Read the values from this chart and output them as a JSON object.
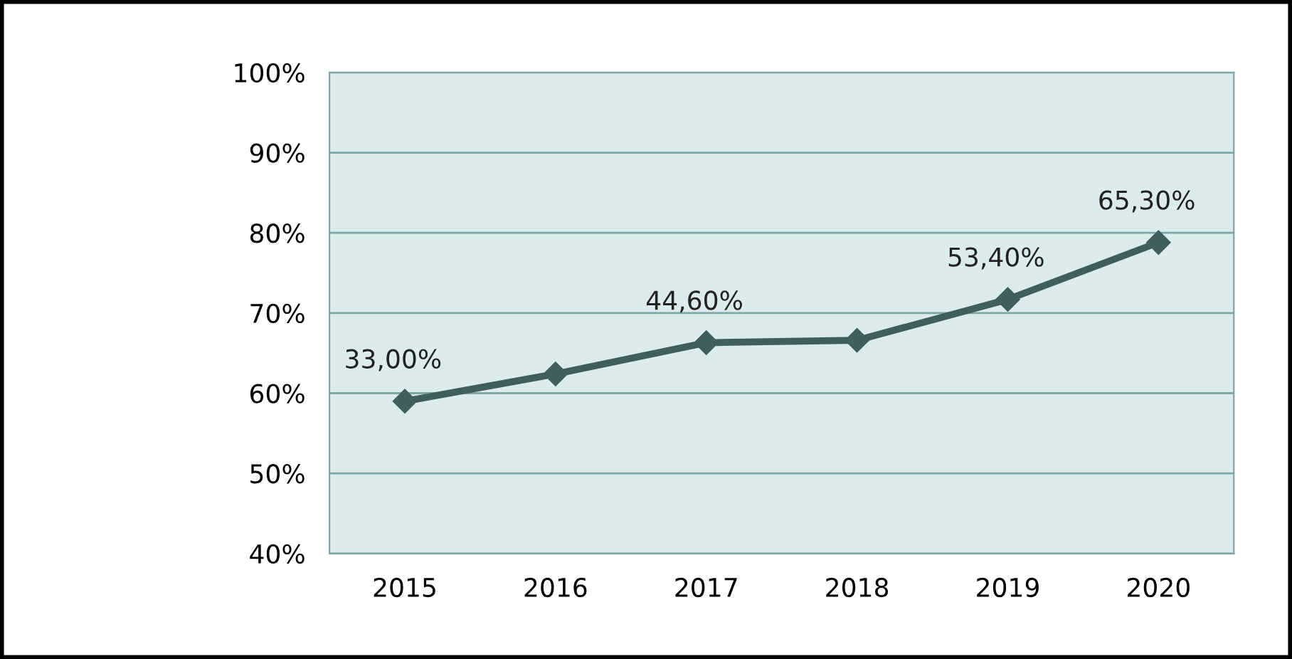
{
  "chart_data": {
    "type": "line",
    "categories": [
      "2015",
      "2016",
      "2017",
      "2018",
      "2019",
      "2020"
    ],
    "series": [
      {
        "color": "#3f5f5f",
        "values": [
          59,
          62.4,
          66.3,
          66.6,
          71.7,
          78.8
        ]
      }
    ],
    "annotations": [
      {
        "text": "33,00%",
        "x": "2015",
        "y": 59
      },
      {
        "text": "44,60%",
        "x": "2017",
        "y": 66.3
      },
      {
        "text": "53,40%",
        "x": "2019",
        "y": 71.7
      },
      {
        "text": "65,30%",
        "x": "2020",
        "y": 78.8
      }
    ],
    "ylim": [
      40,
      100
    ],
    "yticks": [
      {
        "value": 40,
        "label": "40%"
      },
      {
        "value": 50,
        "label": "50%"
      },
      {
        "value": 60,
        "label": "60%"
      },
      {
        "value": 70,
        "label": "70%"
      },
      {
        "value": 80,
        "label": "80%"
      },
      {
        "value": 90,
        "label": "90%"
      },
      {
        "value": 100,
        "label": "100%"
      }
    ],
    "grid": "y",
    "marker": "diamond",
    "line_style": "solid"
  }
}
